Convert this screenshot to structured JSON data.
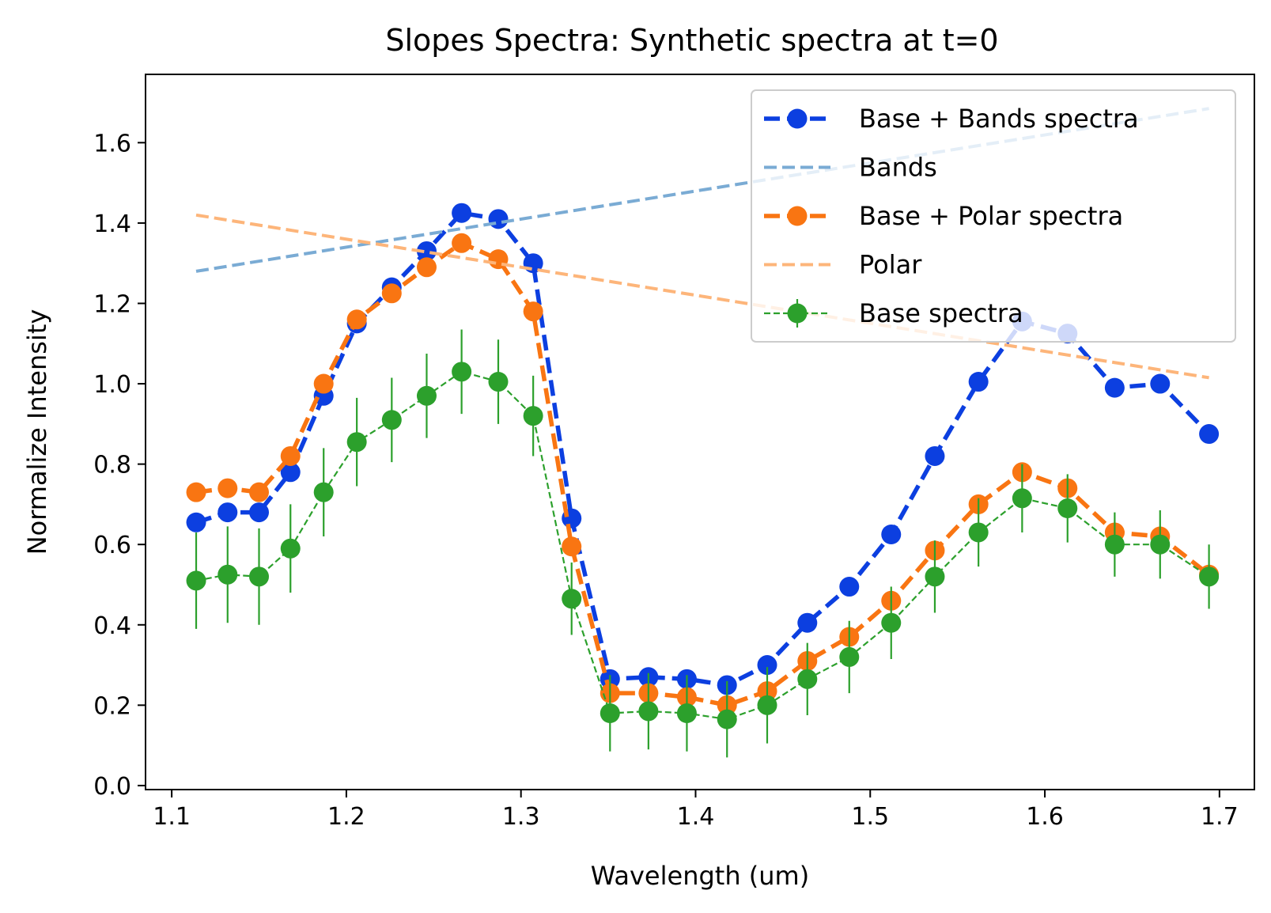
{
  "chart_data": {
    "type": "line",
    "title": "Slopes Spectra: Synthetic spectra at t=0",
    "xlabel": "Wavelength (um)",
    "ylabel": "Normalize Intensity",
    "xlim": [
      1.085,
      1.72
    ],
    "ylim": [
      -0.01,
      1.77
    ],
    "xticks": [
      1.1,
      1.2,
      1.3,
      1.4,
      1.5,
      1.6,
      1.7
    ],
    "xtick_labels": [
      "1.1",
      "1.2",
      "1.3",
      "1.4",
      "1.5",
      "1.6",
      "1.7"
    ],
    "yticks": [
      0.0,
      0.2,
      0.4,
      0.6,
      0.8,
      1.0,
      1.2,
      1.4,
      1.6
    ],
    "ytick_labels": [
      "0.0",
      "0.2",
      "0.4",
      "0.6",
      "0.8",
      "1.0",
      "1.2",
      "1.4",
      "1.6"
    ],
    "grid": false,
    "legend_position": "top-right",
    "x": [
      1.114,
      1.132,
      1.15,
      1.168,
      1.187,
      1.206,
      1.226,
      1.246,
      1.266,
      1.287,
      1.307,
      1.329,
      1.351,
      1.373,
      1.395,
      1.418,
      1.441,
      1.464,
      1.488,
      1.512,
      1.537,
      1.562,
      1.587,
      1.613,
      1.64,
      1.666,
      1.694
    ],
    "series": [
      {
        "name": "Base + Bands spectra",
        "color": "#0c3fe0",
        "style": "dashed-marker",
        "values": [
          0.655,
          0.68,
          0.68,
          0.78,
          0.97,
          1.15,
          1.24,
          1.33,
          1.425,
          1.41,
          1.3,
          0.665,
          0.265,
          0.27,
          0.265,
          0.25,
          0.3,
          0.405,
          0.495,
          0.625,
          0.82,
          1.005,
          1.155,
          1.125,
          0.99,
          1.0,
          0.875
        ]
      },
      {
        "name": "Bands",
        "color": "#7aabd4",
        "style": "dashed",
        "x": [
          1.114,
          1.694
        ],
        "values": [
          1.28,
          1.685
        ]
      },
      {
        "name": "Base + Polar spectra",
        "color": "#f97512",
        "style": "dashed-marker",
        "values": [
          0.73,
          0.74,
          0.73,
          0.82,
          1.0,
          1.16,
          1.225,
          1.29,
          1.35,
          1.31,
          1.18,
          0.595,
          0.23,
          0.23,
          0.22,
          0.2,
          0.235,
          0.31,
          0.37,
          0.46,
          0.585,
          0.7,
          0.78,
          0.74,
          0.63,
          0.62,
          0.525
        ]
      },
      {
        "name": "Polar",
        "color": "#fdb57a",
        "style": "dashed",
        "x": [
          1.114,
          1.694
        ],
        "values": [
          1.42,
          1.015
        ]
      },
      {
        "name": "Base spectra",
        "color": "#2ca02c",
        "style": "errorbar",
        "values": [
          0.51,
          0.525,
          0.52,
          0.59,
          0.73,
          0.855,
          0.91,
          0.97,
          1.03,
          1.005,
          0.92,
          0.465,
          0.18,
          0.185,
          0.18,
          0.165,
          0.2,
          0.265,
          0.32,
          0.405,
          0.52,
          0.63,
          0.715,
          0.69,
          0.6,
          0.6,
          0.52
        ],
        "errors": [
          0.12,
          0.12,
          0.12,
          0.11,
          0.11,
          0.11,
          0.105,
          0.105,
          0.105,
          0.105,
          0.1,
          0.09,
          0.095,
          0.095,
          0.095,
          0.095,
          0.095,
          0.09,
          0.09,
          0.09,
          0.09,
          0.085,
          0.085,
          0.085,
          0.08,
          0.085,
          0.08
        ]
      }
    ]
  }
}
